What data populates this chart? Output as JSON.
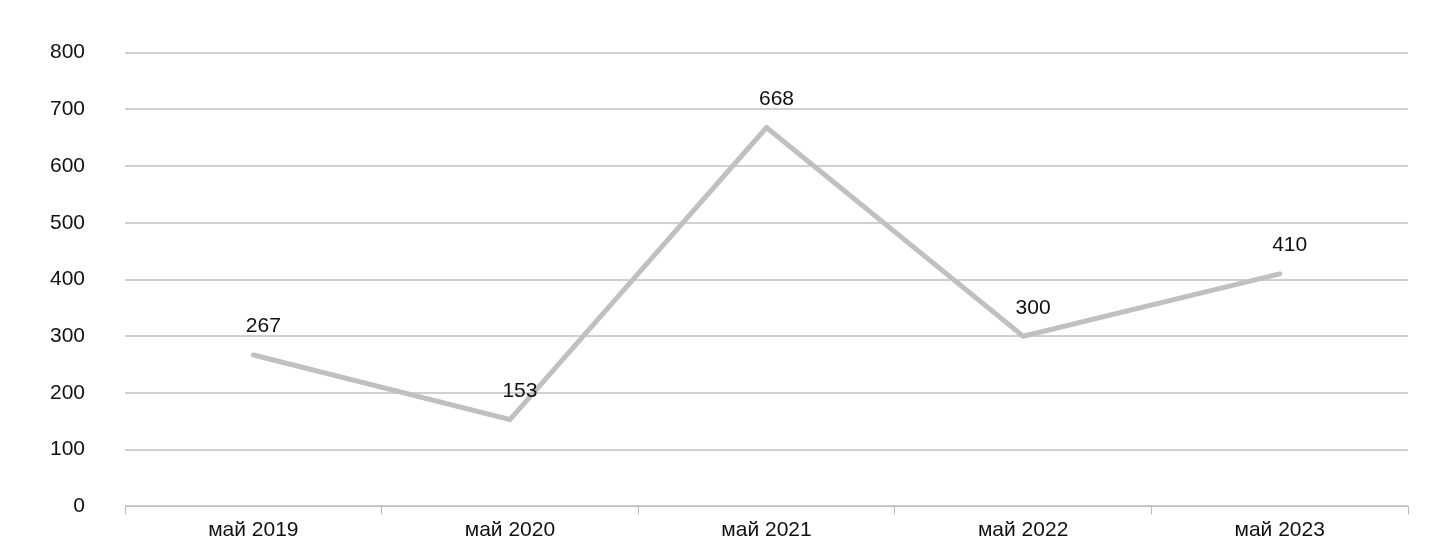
{
  "chart_data": {
    "type": "line",
    "categories": [
      "май 2019",
      "май 2020",
      "май 2021",
      "май 2022",
      "май 2023"
    ],
    "series": [
      {
        "color": "#c0c0c0",
        "values": [
          267,
          153,
          668,
          300,
          410
        ]
      }
    ],
    "ylim": [
      0,
      800
    ],
    "yticks": [
      0,
      100,
      200,
      300,
      400,
      500,
      600,
      700,
      800
    ],
    "grid": "y",
    "data_labels": true,
    "marker": "none",
    "line_style": "solid",
    "legend": false
  }
}
